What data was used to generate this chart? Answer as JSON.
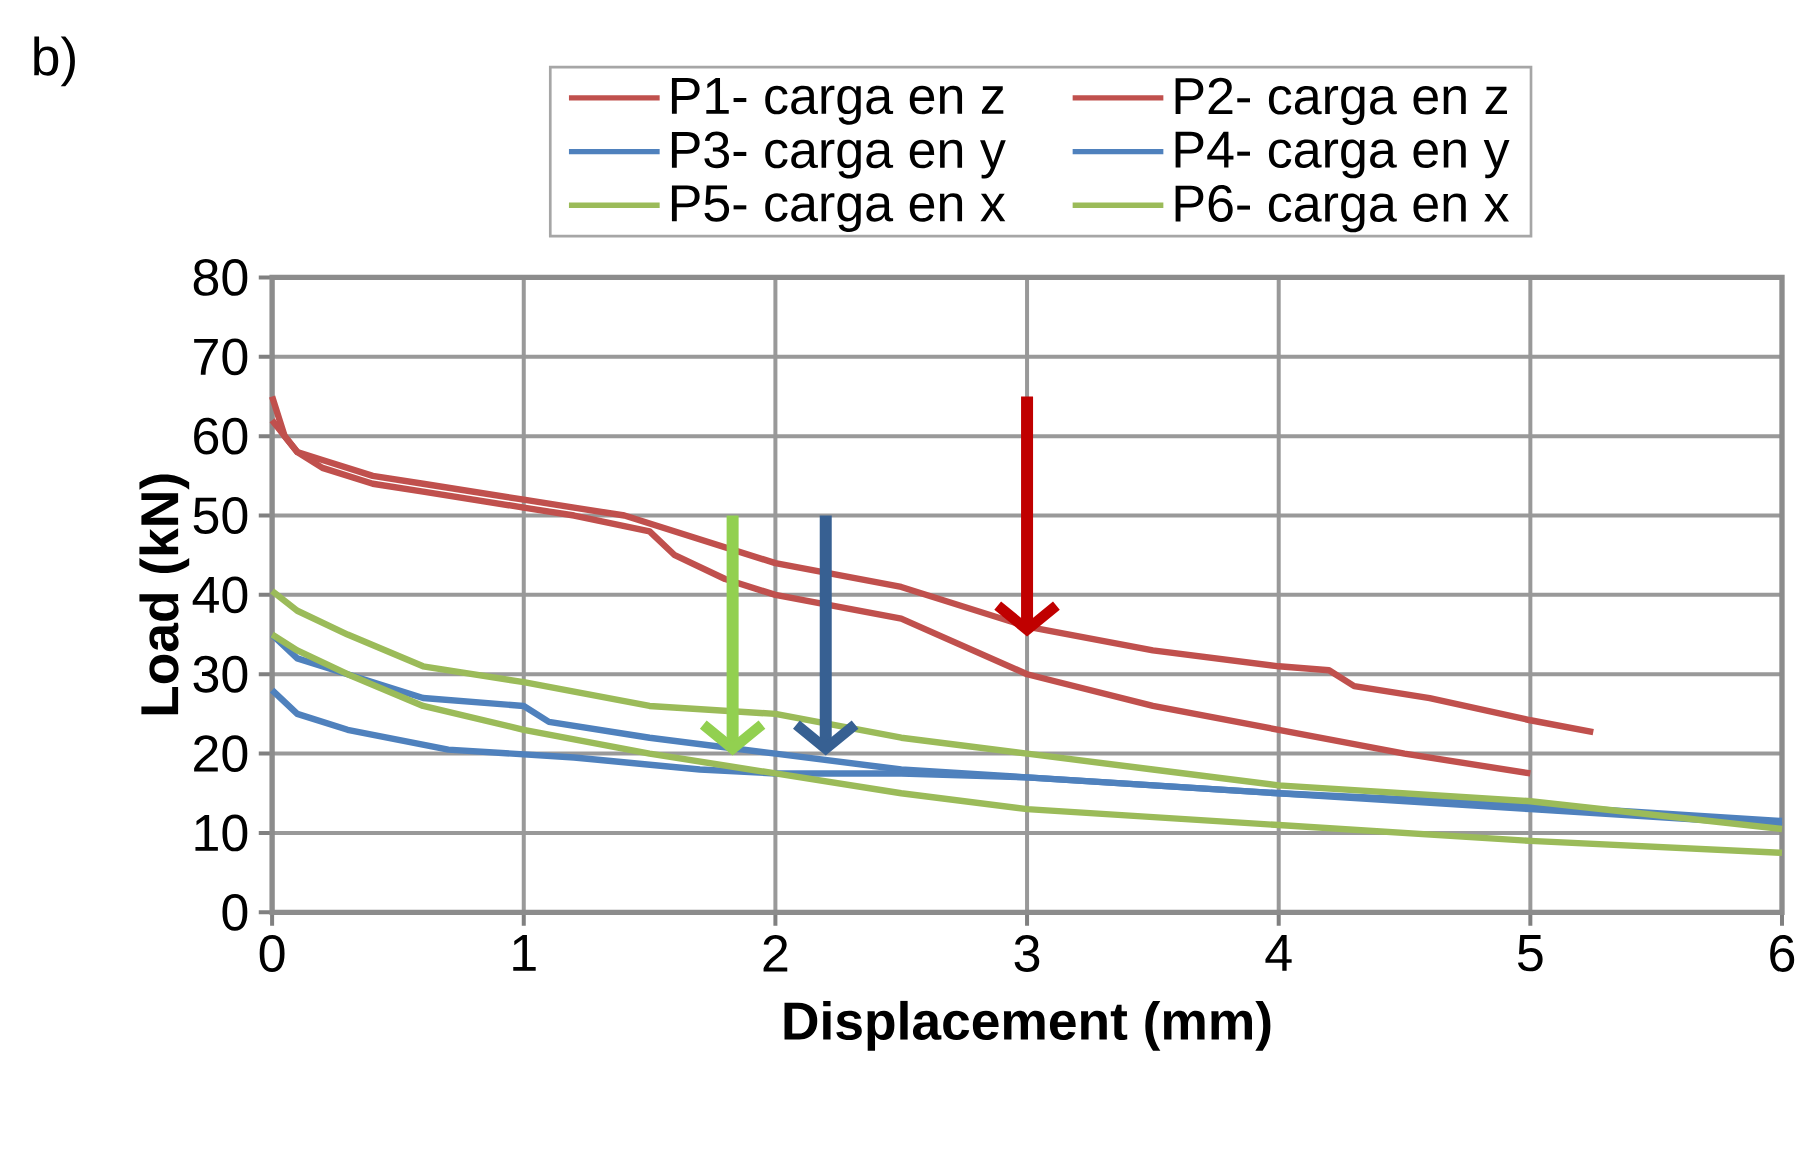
{
  "chart_data": {
    "type": "line",
    "title": "b)",
    "xlabel": "Displacement (mm)",
    "ylabel": "Load (kN)",
    "xlim": [
      0,
      6
    ],
    "ylim": [
      0,
      80
    ],
    "xticks": [
      0,
      1,
      2,
      3,
      4,
      5,
      6
    ],
    "yticks": [
      0,
      10,
      20,
      30,
      40,
      50,
      60,
      70,
      80
    ],
    "grid": true,
    "legend": "top",
    "marker": "none",
    "line_style": "solid",
    "series": [
      {
        "name": "P1- carga en z",
        "color": "#c0504d",
        "x": [
          0,
          0.05,
          0.1,
          0.2,
          0.4,
          0.6,
          1.0,
          1.2,
          1.4,
          1.7,
          2.0,
          2.5,
          3.0,
          3.5,
          4.0,
          4.2,
          4.3,
          4.6,
          5.0,
          5.25
        ],
        "values": [
          65,
          60,
          58,
          57,
          55,
          54,
          52,
          51,
          50,
          47,
          44,
          41,
          36,
          33,
          31,
          30.5,
          28.5,
          27,
          24.2,
          22.7
        ]
      },
      {
        "name": "P2- carga en z",
        "color": "#c0504d",
        "x": [
          0,
          0.1,
          0.2,
          0.4,
          0.6,
          1.0,
          1.2,
          1.5,
          1.6,
          1.8,
          2.0,
          2.5,
          3.0,
          3.5,
          4.0,
          4.5,
          5.0
        ],
        "values": [
          62,
          58,
          56,
          54,
          53,
          51,
          50,
          48,
          45,
          42,
          40,
          37,
          30,
          26,
          23,
          20,
          17.5
        ]
      },
      {
        "name": "P3- carga en y",
        "color": "#4f81bd",
        "x": [
          0,
          0.1,
          0.3,
          0.6,
          1.0,
          1.1,
          1.5,
          2.0,
          2.5,
          3.0,
          4.0,
          5.0,
          6.0
        ],
        "values": [
          35,
          32,
          30,
          27,
          26,
          24,
          22,
          20,
          18,
          17,
          15,
          13.5,
          11.5
        ]
      },
      {
        "name": "P4- carga en y",
        "color": "#4f81bd",
        "x": [
          0,
          0.1,
          0.3,
          0.7,
          1.2,
          1.7,
          2.0,
          2.5,
          3.0,
          4.0,
          5.0,
          6.0
        ],
        "values": [
          28,
          25,
          23,
          20.5,
          19.5,
          18,
          17.5,
          17.5,
          17,
          15,
          13,
          11
        ]
      },
      {
        "name": "P5- carga en x",
        "color": "#9bbb59",
        "x": [
          0,
          0.1,
          0.3,
          0.6,
          1.0,
          1.5,
          2.0,
          2.5,
          3.0,
          3.5,
          4.0,
          5.0,
          6.0
        ],
        "values": [
          40.5,
          38,
          35,
          31,
          29,
          26,
          25,
          22,
          20,
          18,
          16,
          14,
          10.5
        ]
      },
      {
        "name": "P6- carga en x",
        "color": "#9bbb59",
        "x": [
          0,
          0.1,
          0.3,
          0.6,
          1.0,
          1.5,
          2.0,
          2.5,
          3.0,
          4.0,
          5.0,
          6.0
        ],
        "values": [
          35,
          33,
          30,
          26,
          23,
          20,
          17.5,
          15,
          13,
          11,
          9,
          7.5
        ]
      }
    ]
  }
}
